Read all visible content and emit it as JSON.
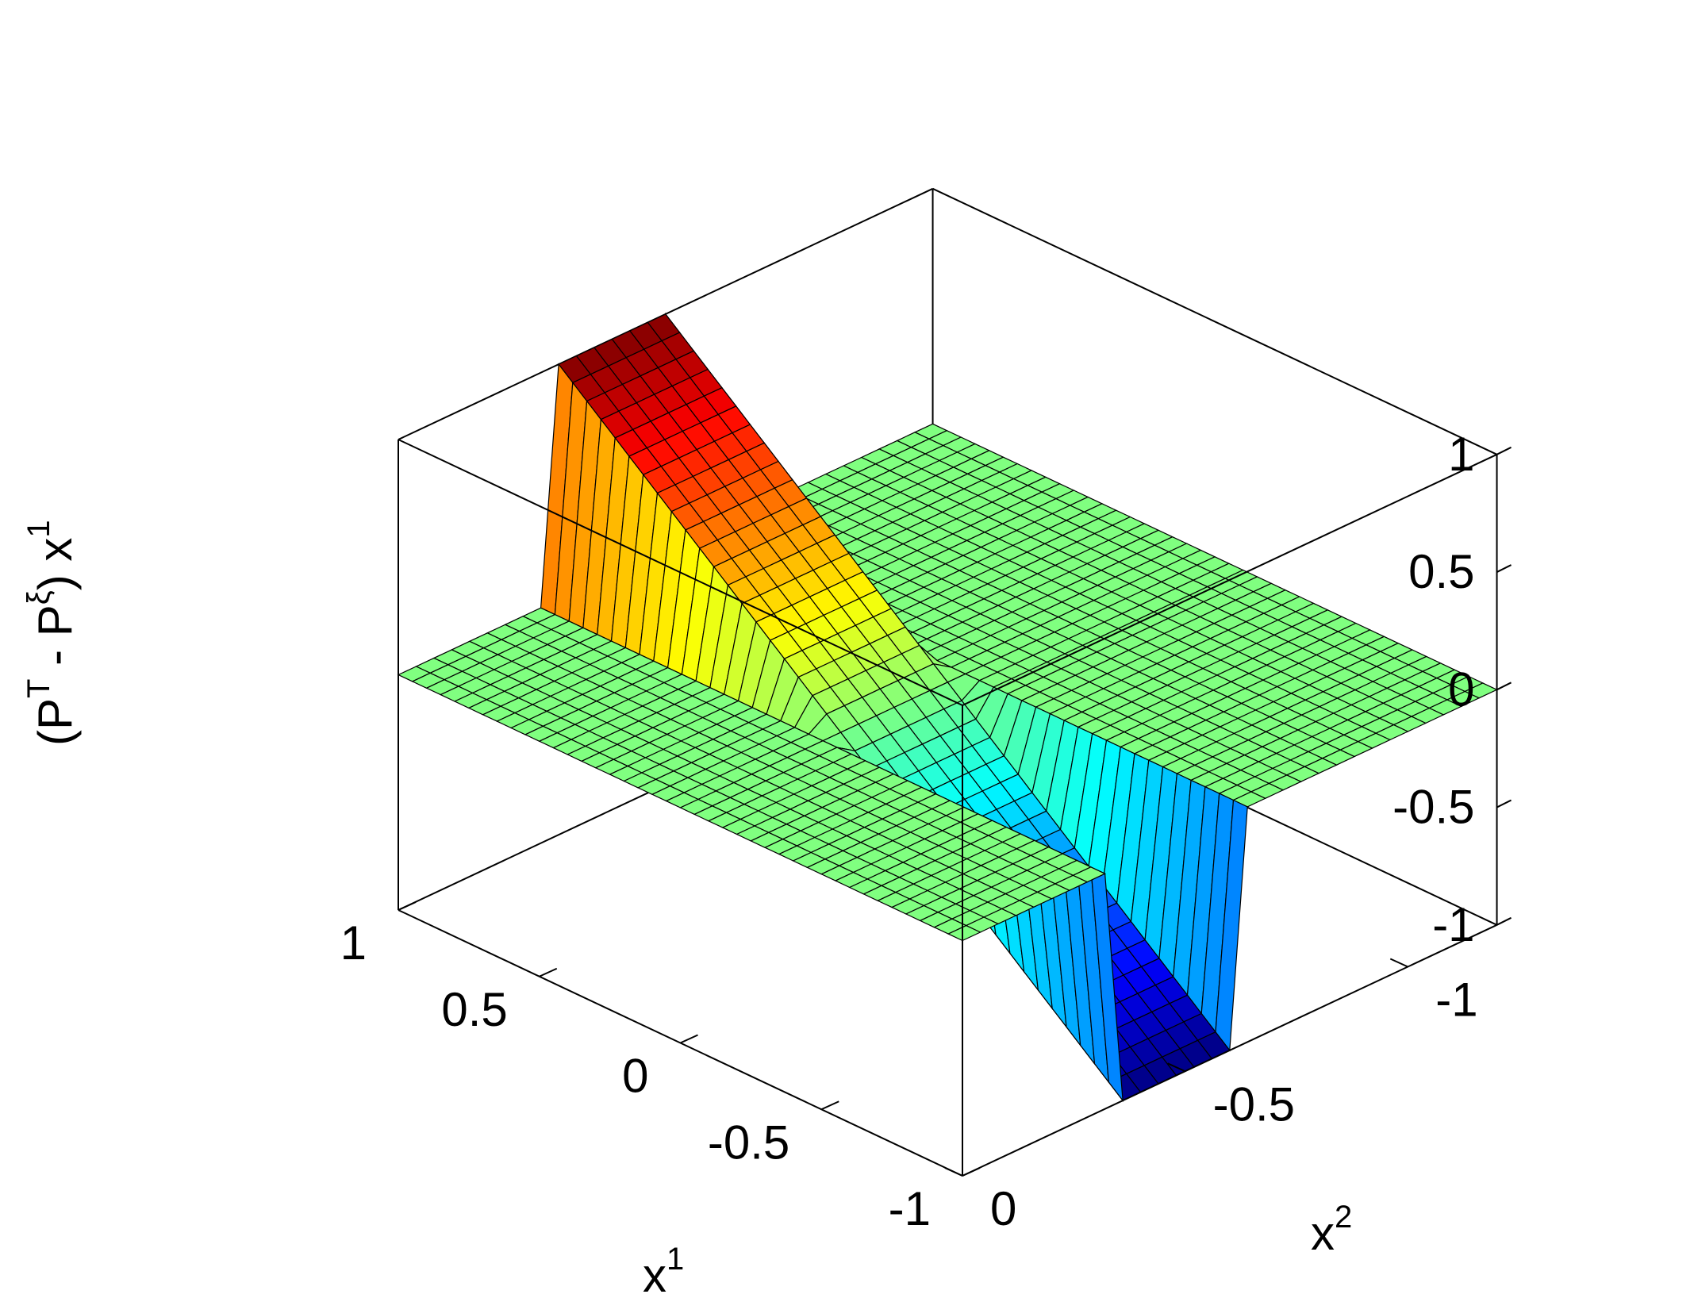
{
  "chart_data": {
    "type": "surface",
    "xlabel": "x",
    "xlabel_sup": "1",
    "ylabel": "x",
    "ylabel_sup": "2",
    "zlabel_parts": {
      "open": "(P",
      "sup_t": "T",
      "mid": " - P",
      "sup_xi": "ξ",
      "close": ") x",
      "sup_1": "1"
    },
    "xlim": [
      -1,
      1
    ],
    "ylim": [
      -1.2,
      0
    ],
    "zlim": [
      -1,
      1
    ],
    "x_ticks": [
      "1",
      "0.5",
      "0",
      "-0.5",
      "-1"
    ],
    "x_tick_values": [
      1,
      0.5,
      0,
      -0.5,
      -1
    ],
    "y_ticks": [
      "0",
      "-0.5",
      "-1"
    ],
    "y_tick_values": [
      0,
      -0.5,
      -1
    ],
    "z_ticks": [
      "1",
      "0.5",
      "0",
      "-0.5",
      "-1"
    ],
    "z_tick_values": [
      1,
      0.5,
      0,
      -0.5,
      -1
    ],
    "grid": false,
    "box": true,
    "colormap": "jet",
    "surface_description": {
      "baseline": 0,
      "positive_ridge": {
        "x_range": [
          0,
          1
        ],
        "y_range": [
          -0.6,
          -0.36
        ],
        "peak": 1.0
      },
      "negative_trough": {
        "x_range": [
          -1,
          0
        ],
        "y_range": [
          -0.6,
          -0.36
        ],
        "trough": -1.0
      }
    }
  }
}
